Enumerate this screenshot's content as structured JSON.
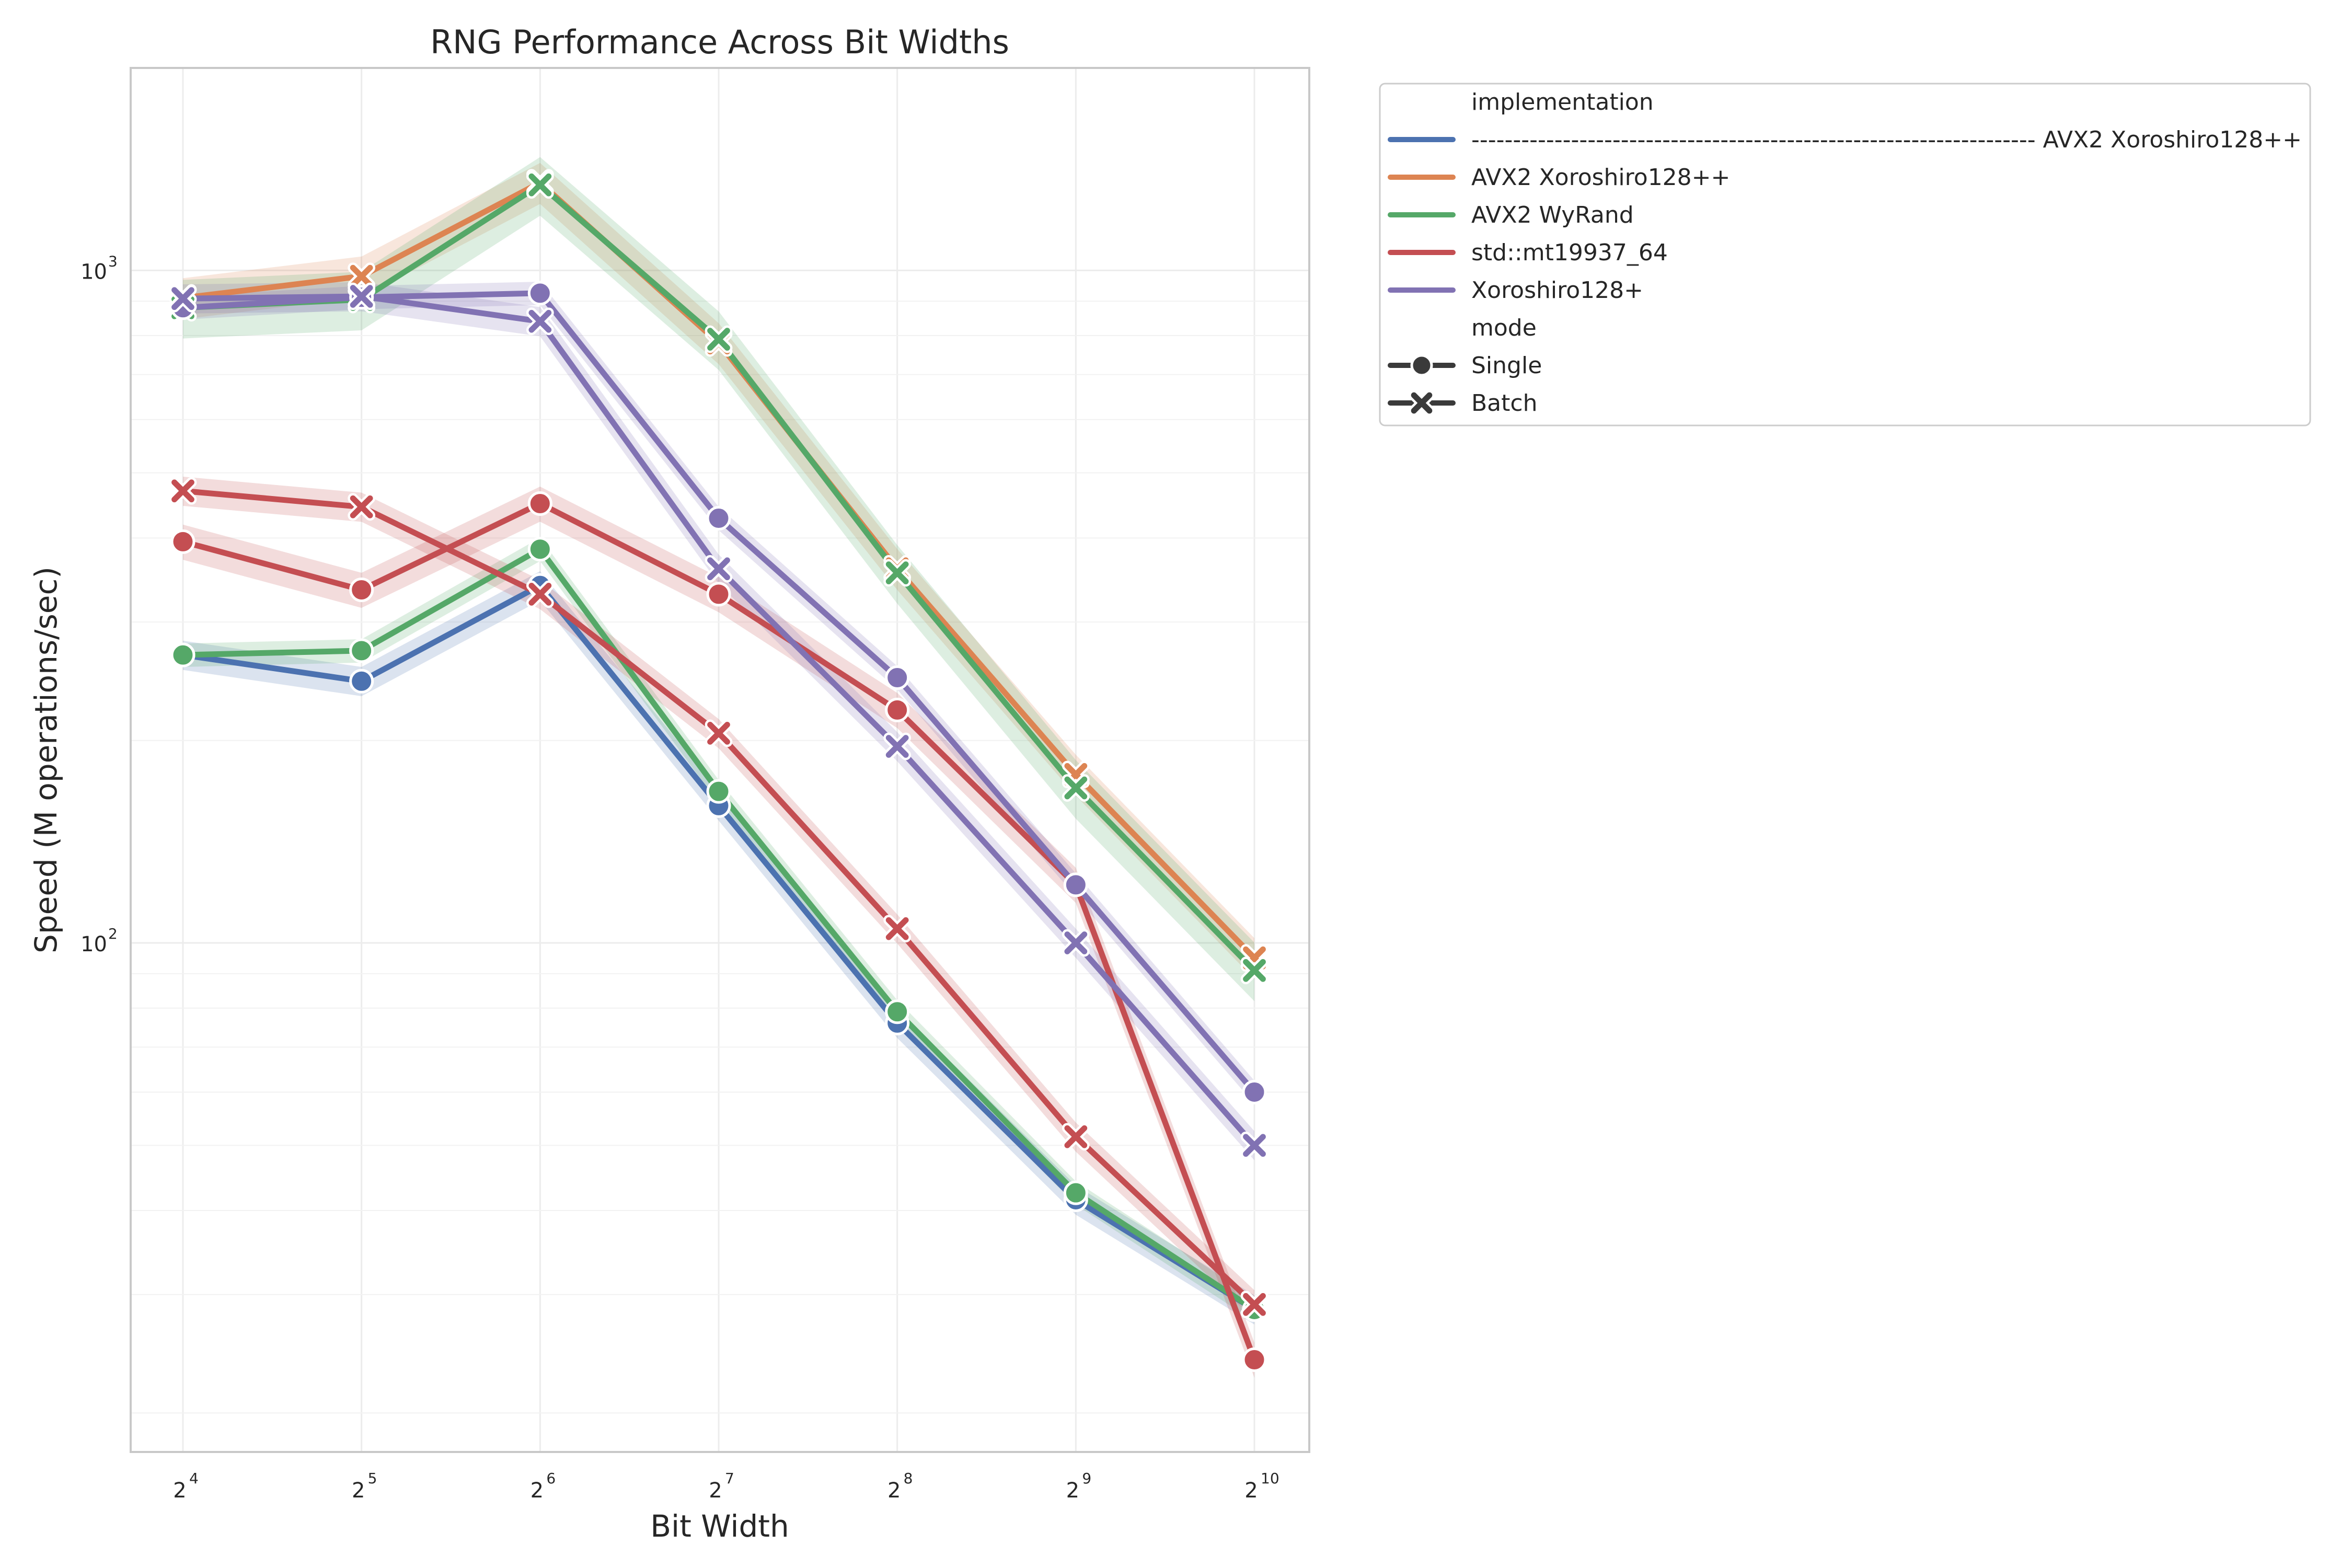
{
  "chart_data": {
    "type": "line",
    "title": "RNG Performance Across Bit Widths",
    "xlabel": "Bit Width",
    "ylabel": "Speed (M operations/sec)",
    "x_scale": "log2",
    "y_scale": "log10",
    "x": [
      16,
      32,
      64,
      128,
      256,
      512,
      1024
    ],
    "x_tick_labels": [
      {
        "base": "2",
        "exp": "4"
      },
      {
        "base": "2",
        "exp": "5"
      },
      {
        "base": "2",
        "exp": "6"
      },
      {
        "base": "2",
        "exp": "7"
      },
      {
        "base": "2",
        "exp": "8"
      },
      {
        "base": "2",
        "exp": "9"
      },
      {
        "base": "2",
        "exp": "10"
      }
    ],
    "y_ticks": [
      {
        "value": 100,
        "base": "10",
        "exp": "2"
      },
      {
        "value": 1000,
        "base": "10",
        "exp": "3"
      }
    ],
    "ylim": [
      17.5,
      2000
    ],
    "grid": true,
    "legend_position": "outside-right",
    "legend": {
      "hue_title": "implementation",
      "style_title": "mode",
      "hue_entries": [
        {
          "label": "-------------------------------------------------------------------- AVX2 Xoroshiro128++",
          "color": "#4c72b0"
        },
        {
          "label": "AVX2 Xoroshiro128++",
          "color": "#dd8452"
        },
        {
          "label": "AVX2 WyRand",
          "color": "#55a868"
        },
        {
          "label": "std::mt19937_64",
          "color": "#c44e52"
        },
        {
          "label": "Xoroshiro128+",
          "color": "#8172b3"
        }
      ],
      "style_entries": [
        {
          "label": "Single",
          "marker": "circle"
        },
        {
          "label": "Batch",
          "marker": "x"
        }
      ]
    },
    "series": [
      {
        "implementation": "-------------------------------------------------------------------- AVX2 Xoroshiro128++",
        "mode": "Single",
        "color": "#4c72b0",
        "marker": "circle",
        "values": [
          268,
          245,
          340,
          160,
          76,
          41.5,
          28.5
        ],
        "band": 0.05
      },
      {
        "implementation": "AVX2 Xoroshiro128++",
        "mode": "Batch",
        "color": "#dd8452",
        "marker": "x",
        "values": [
          910,
          980,
          1350,
          780,
          360,
          178,
          95
        ],
        "band": 0.07
      },
      {
        "implementation": "AVX2 WyRand",
        "mode": "Single",
        "color": "#55a868",
        "marker": "circle",
        "values": [
          268,
          272,
          385,
          168,
          79,
          42.5,
          28.5
        ],
        "band": 0.04
      },
      {
        "implementation": "AVX2 WyRand",
        "mode": "Batch",
        "color": "#55a868",
        "marker": "x",
        "values": [
          880,
          905,
          1340,
          790,
          355,
          170,
          91
        ],
        "band": 0.1
      },
      {
        "implementation": "std::mt19937_64",
        "mode": "Single",
        "color": "#c44e52",
        "marker": "circle",
        "values": [
          395,
          335,
          450,
          330,
          222,
          122,
          24
        ],
        "band": 0.06
      },
      {
        "implementation": "std::mt19937_64",
        "mode": "Batch",
        "color": "#c44e52",
        "marker": "x",
        "values": [
          470,
          445,
          330,
          205,
          105,
          51.5,
          29
        ],
        "band": 0.05
      },
      {
        "implementation": "Xoroshiro128+",
        "mode": "Single",
        "color": "#8172b3",
        "marker": "circle",
        "values": [
          880,
          912,
          925,
          428,
          248,
          122,
          60
        ],
        "band": 0.04
      },
      {
        "implementation": "Xoroshiro128+",
        "mode": "Batch",
        "color": "#8172b3",
        "marker": "x",
        "values": [
          908,
          915,
          840,
          360,
          196,
          100,
          50
        ],
        "band": 0.05
      }
    ]
  }
}
